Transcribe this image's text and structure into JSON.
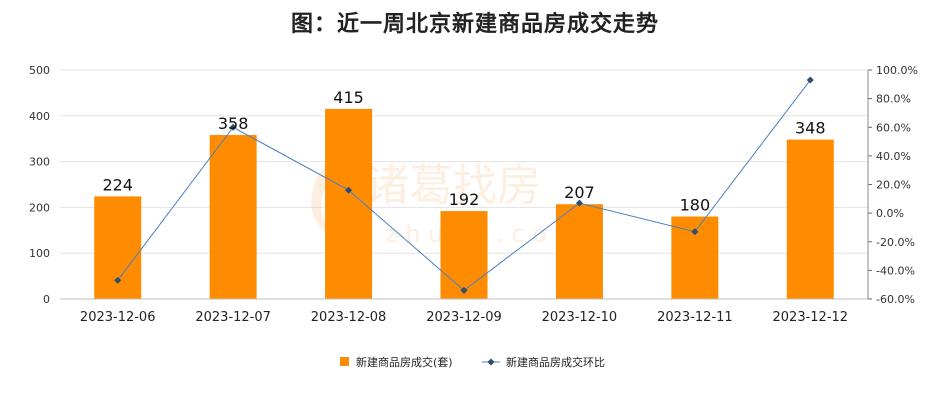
{
  "chart_data": {
    "type": "bar",
    "title": "图：近一周北京新建商品房成交走势",
    "categories": [
      "2023-12-06",
      "2023-12-07",
      "2023-12-08",
      "2023-12-09",
      "2023-12-10",
      "2023-12-11",
      "2023-12-12"
    ],
    "series": [
      {
        "name": "新建商品房成交(套)",
        "type": "bar",
        "axis": "left",
        "color": "#FF8C00",
        "values": [
          224,
          358,
          415,
          192,
          207,
          180,
          348
        ]
      },
      {
        "name": "新建商品房成交环比",
        "type": "line",
        "axis": "right",
        "color": "#4A7FC1",
        "values": [
          -47.0,
          60.0,
          16.0,
          -54.0,
          7.0,
          -13.0,
          93.0
        ]
      }
    ],
    "y_left": {
      "ylim": [
        0,
        500
      ],
      "ticks": [
        "0",
        "100",
        "200",
        "300",
        "400",
        "500"
      ]
    },
    "y_right": {
      "ylim": [
        -60,
        100
      ],
      "ticks": [
        "-60.0%",
        "-40.0%",
        "-20.0%",
        "0.0%",
        "20.0%",
        "40.0%",
        "60.0%",
        "80.0%",
        "100.0%"
      ]
    },
    "grid": true,
    "legend_position": "bottom"
  },
  "watermark": {
    "text": "诸葛找房",
    "subtext": "z h u g e . c o m"
  }
}
